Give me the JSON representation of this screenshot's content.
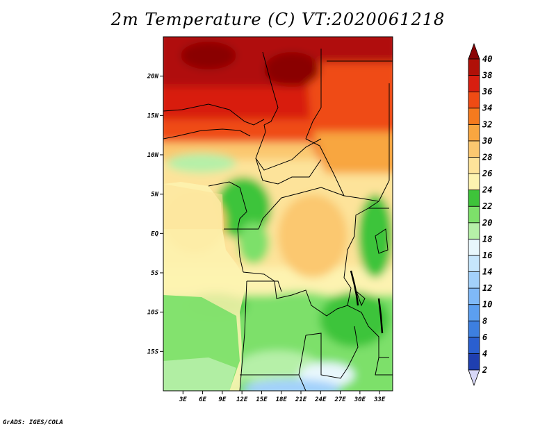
{
  "title": "2m Temperature (C) VT:2020061218",
  "footer": "GrADS: IGES/COLA",
  "chart_data": {
    "type": "heatmap",
    "title": "2m Temperature (C) VT:2020061218",
    "x_ticks": [
      "3E",
      "6E",
      "9E",
      "12E",
      "15E",
      "18E",
      "21E",
      "24E",
      "27E",
      "30E",
      "33E"
    ],
    "y_ticks": [
      "20N",
      "15N",
      "10N",
      "5N",
      "EQ",
      "5S",
      "10S",
      "15S"
    ],
    "xlim": [
      0,
      35
    ],
    "ylim": [
      -20,
      25
    ],
    "colorbar": {
      "labels": [
        "2",
        "4",
        "6",
        "8",
        "10",
        "12",
        "14",
        "16",
        "18",
        "20",
        "22",
        "24",
        "26",
        "28",
        "30",
        "32",
        "34",
        "36",
        "38",
        "40"
      ],
      "colors": [
        "#1a1a80",
        "#1f3fb0",
        "#2a5fd0",
        "#3d7fe0",
        "#5c9ff0",
        "#7fb9f8",
        "#a3d1fb",
        "#c6e6fc",
        "#e8f7fc",
        "#b6f0a8",
        "#7de06a",
        "#3ec43a",
        "#fdf3b0",
        "#fde39a",
        "#fbc870",
        "#f8a640",
        "#f57a1e",
        "#ef4b14",
        "#d81e10",
        "#b01008",
        "#8a0405"
      ]
    },
    "field_bands": [
      {
        "lat_range": [
          20,
          25
        ],
        "temp": 39
      },
      {
        "lat_range": [
          15,
          20
        ],
        "temp": 36
      },
      {
        "lat_range": [
          10,
          15
        ],
        "temp": 32
      },
      {
        "lat_range": [
          5,
          10
        ],
        "temp": 27
      },
      {
        "lat_range": [
          -5,
          5
        ],
        "temp": 26
      },
      {
        "lat_range": [
          -10,
          -5
        ],
        "temp": 25
      },
      {
        "lat_range": [
          -20,
          -10
        ],
        "temp": 21
      }
    ]
  }
}
